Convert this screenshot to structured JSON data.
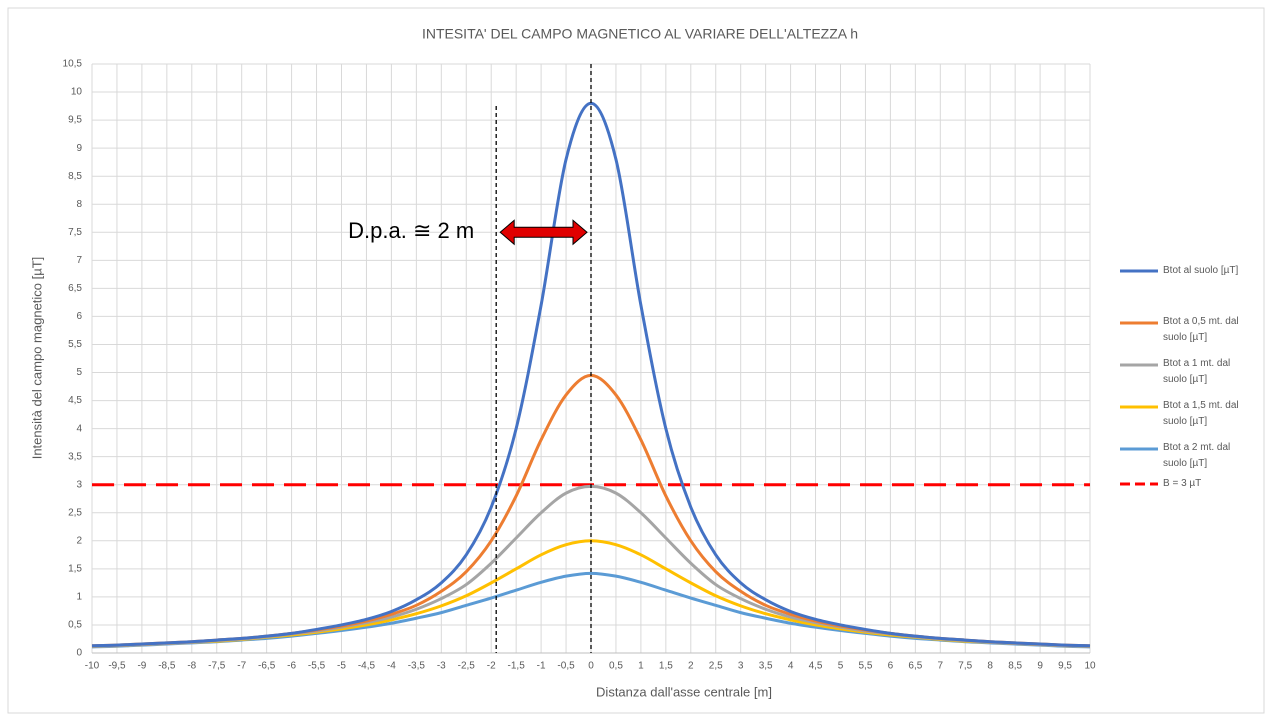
{
  "chart_data": {
    "type": "line",
    "title": "INTESITA' DEL CAMPO MAGNETICO AL VARIARE DELL'ALTEZZA h",
    "x_label": "Distanza dall'asse centrale [m]",
    "y_label": "Intensità del campo magnetico [µT]",
    "x": [
      -10,
      -9.5,
      -9,
      -8.5,
      -8,
      -7.5,
      -7,
      -6.5,
      -6,
      -5.5,
      -5,
      -4.5,
      -4,
      -3.5,
      -3,
      -2.5,
      -2,
      -1.5,
      -1,
      -0.5,
      0,
      0.5,
      1,
      1.5,
      2,
      2.5,
      3,
      3.5,
      4,
      4.5,
      5,
      5.5,
      6,
      6.5,
      7,
      7.5,
      8,
      8.5,
      9,
      9.5,
      10
    ],
    "series": [
      {
        "name": "Btot al suolo [µT]",
        "color": "#4472c4",
        "values": [
          0.13,
          0.14,
          0.16,
          0.18,
          0.2,
          0.23,
          0.26,
          0.3,
          0.35,
          0.42,
          0.5,
          0.6,
          0.74,
          0.95,
          1.25,
          1.75,
          2.6,
          4.0,
          6.2,
          8.8,
          9.8,
          8.8,
          6.2,
          4.0,
          2.6,
          1.75,
          1.25,
          0.95,
          0.74,
          0.6,
          0.5,
          0.42,
          0.35,
          0.3,
          0.26,
          0.23,
          0.2,
          0.18,
          0.16,
          0.14,
          0.13
        ]
      },
      {
        "name": "Btot a 0,5 mt. dal suolo [µT]",
        "color": "#ed7d31",
        "values": [
          0.13,
          0.14,
          0.16,
          0.18,
          0.2,
          0.23,
          0.26,
          0.3,
          0.35,
          0.41,
          0.48,
          0.57,
          0.69,
          0.85,
          1.1,
          1.45,
          2.0,
          2.8,
          3.8,
          4.6,
          4.95,
          4.6,
          3.8,
          2.8,
          2.0,
          1.45,
          1.1,
          0.85,
          0.69,
          0.57,
          0.48,
          0.41,
          0.35,
          0.3,
          0.26,
          0.23,
          0.2,
          0.18,
          0.16,
          0.14,
          0.13
        ]
      },
      {
        "name": "Btot a 1 mt. dal suolo [µT]",
        "color": "#a5a5a5",
        "values": [
          0.12,
          0.13,
          0.15,
          0.17,
          0.19,
          0.22,
          0.25,
          0.29,
          0.34,
          0.39,
          0.46,
          0.54,
          0.64,
          0.78,
          0.97,
          1.22,
          1.6,
          2.05,
          2.5,
          2.85,
          2.97,
          2.85,
          2.5,
          2.05,
          1.6,
          1.22,
          0.97,
          0.78,
          0.64,
          0.54,
          0.46,
          0.39,
          0.34,
          0.29,
          0.25,
          0.22,
          0.19,
          0.17,
          0.15,
          0.13,
          0.12
        ]
      },
      {
        "name": "Btot a 1,5 mt. dal suolo [µT]",
        "color": "#ffc000",
        "values": [
          0.12,
          0.13,
          0.15,
          0.17,
          0.19,
          0.21,
          0.24,
          0.28,
          0.32,
          0.37,
          0.43,
          0.5,
          0.59,
          0.7,
          0.84,
          1.02,
          1.25,
          1.5,
          1.75,
          1.93,
          2.0,
          1.93,
          1.75,
          1.5,
          1.25,
          1.02,
          0.84,
          0.7,
          0.59,
          0.5,
          0.43,
          0.37,
          0.32,
          0.28,
          0.24,
          0.21,
          0.19,
          0.17,
          0.15,
          0.13,
          0.12
        ]
      },
      {
        "name": "Btot a 2 mt. dal suolo [µT]",
        "color": "#5b9bd5",
        "values": [
          0.11,
          0.12,
          0.14,
          0.16,
          0.18,
          0.2,
          0.23,
          0.26,
          0.3,
          0.35,
          0.4,
          0.46,
          0.53,
          0.62,
          0.72,
          0.85,
          0.98,
          1.12,
          1.26,
          1.37,
          1.42,
          1.37,
          1.26,
          1.12,
          0.98,
          0.85,
          0.72,
          0.62,
          0.53,
          0.46,
          0.4,
          0.35,
          0.3,
          0.26,
          0.23,
          0.2,
          0.18,
          0.16,
          0.14,
          0.12,
          0.11
        ]
      },
      {
        "name": "B = 3 µT",
        "color": "#ff0000",
        "dashed": true,
        "values": [
          3,
          3,
          3,
          3,
          3,
          3,
          3,
          3,
          3,
          3,
          3,
          3,
          3,
          3,
          3,
          3,
          3,
          3,
          3,
          3,
          3,
          3,
          3,
          3,
          3,
          3,
          3,
          3,
          3,
          3,
          3,
          3,
          3,
          3,
          3,
          3,
          3,
          3,
          3,
          3,
          3
        ]
      }
    ],
    "xlim": [
      -10,
      10
    ],
    "ylim": [
      0,
      10.5
    ],
    "xticks": [
      -10,
      {
        "value": -9.5,
        "label": "-9,5"
      },
      -9,
      {
        "value": -8.5,
        "label": "-8,5"
      },
      -8,
      {
        "value": -7.5,
        "label": "-7,5"
      },
      -7,
      {
        "value": -6.5,
        "label": "-6,5"
      },
      -6,
      {
        "value": -5.5,
        "label": "-5,5"
      },
      -5,
      {
        "value": -4.5,
        "label": "-4,5"
      },
      -4,
      {
        "value": -3.5,
        "label": "-3,5"
      },
      -3,
      {
        "value": -2.5,
        "label": "-2,5"
      },
      -2,
      {
        "value": -1.5,
        "label": "-1,5"
      },
      -1,
      {
        "value": -0.5,
        "label": "-0,5"
      },
      0,
      {
        "value": 0.5,
        "label": "0,5"
      },
      1,
      {
        "value": 1.5,
        "label": "1,5"
      },
      2,
      {
        "value": 2.5,
        "label": "2,5"
      },
      3,
      {
        "value": 3.5,
        "label": "3,5"
      },
      4,
      {
        "value": 4.5,
        "label": "4,5"
      },
      5,
      {
        "value": 5.5,
        "label": "5,5"
      },
      6,
      {
        "value": 6.5,
        "label": "6,5"
      },
      7,
      {
        "value": 7.5,
        "label": "7,5"
      },
      8,
      {
        "value": 8.5,
        "label": "8,5"
      },
      9,
      {
        "value": 9.5,
        "label": "9,5"
      },
      10
    ],
    "yticks": [
      0,
      {
        "value": 0.5,
        "label": "0,5"
      },
      1,
      {
        "value": 1.5,
        "label": "1,5"
      },
      2,
      {
        "value": 2.5,
        "label": "2,5"
      },
      3,
      {
        "value": 3.5,
        "label": "3,5"
      },
      4,
      {
        "value": 4.5,
        "label": "4,5"
      },
      5,
      {
        "value": 5.5,
        "label": "5,5"
      },
      6,
      {
        "value": 6.5,
        "label": "6,5"
      },
      7,
      {
        "value": 7.5,
        "label": "7,5"
      },
      8,
      {
        "value": 8.5,
        "label": "8,5"
      },
      9,
      {
        "value": 9.5,
        "label": "9,5"
      },
      10,
      {
        "value": 10.5,
        "label": "10,5"
      }
    ],
    "grid": true,
    "legend": "right",
    "vlines": [
      -1.9,
      0
    ],
    "annotation": {
      "text": "D.p.a. ≅ 2 m",
      "y": 7.5
    }
  }
}
